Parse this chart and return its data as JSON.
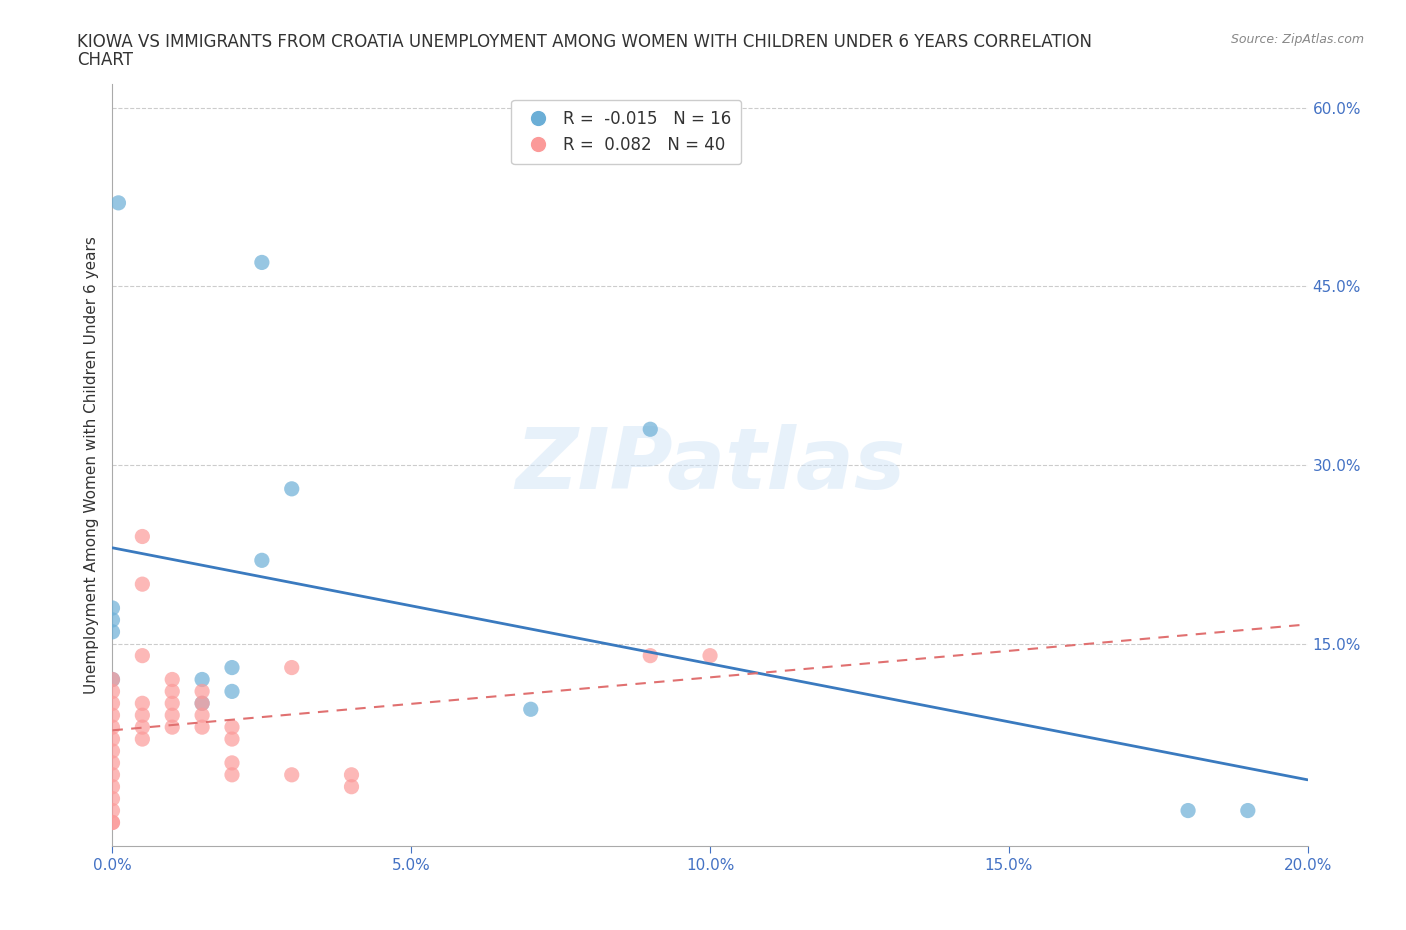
{
  "title_line1": "KIOWA VS IMMIGRANTS FROM CROATIA UNEMPLOYMENT AMONG WOMEN WITH CHILDREN UNDER 6 YEARS CORRELATION",
  "title_line2": "CHART",
  "source": "Source: ZipAtlas.com",
  "xlabel": "",
  "ylabel": "Unemployment Among Women with Children Under 6 years",
  "xlim": [
    0.0,
    0.2
  ],
  "ylim": [
    -0.02,
    0.62
  ],
  "xticks": [
    0.0,
    0.05,
    0.1,
    0.15,
    0.2
  ],
  "xtick_labels": [
    "0.0%",
    "5.0%",
    "10.0%",
    "15.0%",
    "20.0%"
  ],
  "yticks_right": [
    0.15,
    0.3,
    0.45,
    0.6
  ],
  "ytick_labels_right": [
    "15.0%",
    "30.0%",
    "45.0%",
    "60.0%"
  ],
  "kiowa_color": "#6baed6",
  "croatia_color": "#fb9a99",
  "kiowa_R": -0.015,
  "kiowa_N": 16,
  "croatia_R": 0.082,
  "croatia_N": 40,
  "kiowa_x": [
    0.001,
    0.025,
    0.03,
    0.0,
    0.0,
    0.0,
    0.0,
    0.015,
    0.015,
    0.02,
    0.02,
    0.025,
    0.07,
    0.09,
    0.19,
    0.18
  ],
  "kiowa_y": [
    0.52,
    0.47,
    0.28,
    0.18,
    0.17,
    0.16,
    0.12,
    0.12,
    0.1,
    0.11,
    0.13,
    0.22,
    0.095,
    0.33,
    0.01,
    0.01
  ],
  "croatia_x": [
    0.0,
    0.0,
    0.0,
    0.0,
    0.0,
    0.0,
    0.0,
    0.0,
    0.0,
    0.0,
    0.0,
    0.0,
    0.0,
    0.0,
    0.005,
    0.005,
    0.005,
    0.005,
    0.005,
    0.005,
    0.005,
    0.01,
    0.01,
    0.01,
    0.01,
    0.01,
    0.015,
    0.015,
    0.015,
    0.015,
    0.02,
    0.02,
    0.02,
    0.02,
    0.03,
    0.03,
    0.04,
    0.04,
    0.09,
    0.1
  ],
  "croatia_y": [
    0.0,
    0.0,
    0.01,
    0.02,
    0.03,
    0.04,
    0.05,
    0.06,
    0.07,
    0.08,
    0.09,
    0.1,
    0.11,
    0.12,
    0.07,
    0.08,
    0.09,
    0.1,
    0.14,
    0.2,
    0.24,
    0.08,
    0.09,
    0.1,
    0.11,
    0.12,
    0.08,
    0.09,
    0.1,
    0.11,
    0.05,
    0.07,
    0.08,
    0.04,
    0.13,
    0.04,
    0.04,
    0.03,
    0.14,
    0.14
  ],
  "watermark": "ZIPatlas",
  "background_color": "#ffffff",
  "grid_color": "#cccccc"
}
